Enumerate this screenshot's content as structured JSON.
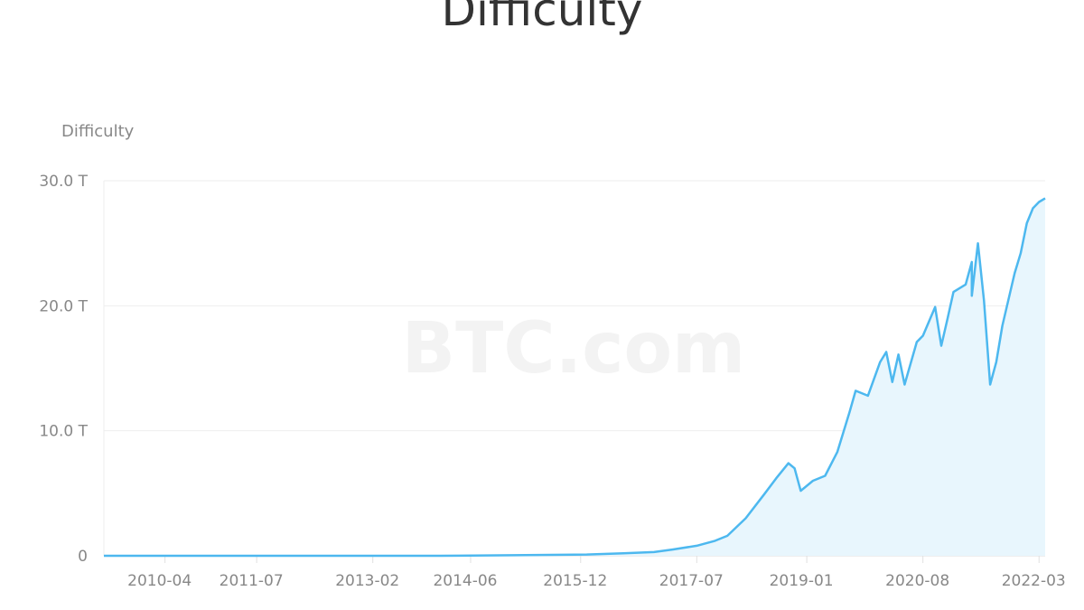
{
  "title": "Difficulty",
  "watermark": "BTC.com",
  "chart_data": {
    "type": "area",
    "title": "Difficulty",
    "ylabel": "Difficulty",
    "xlabel": "",
    "y_unit": "T",
    "ylim": [
      0,
      30
    ],
    "yticks": [
      {
        "v": 0,
        "label": "0"
      },
      {
        "v": 10,
        "label": "10.0 T"
      },
      {
        "v": 20,
        "label": "20.0 T"
      },
      {
        "v": 30,
        "label": "30.0 T"
      }
    ],
    "xrange": [
      "2009-06",
      "2022-04"
    ],
    "xticks": [
      "2010-04",
      "2011-07",
      "2013-02",
      "2014-06",
      "2015-12",
      "2017-07",
      "2019-01",
      "2020-08",
      "2022-03"
    ],
    "grid": true,
    "legend": "none",
    "colors": {
      "line": "#4db8ef",
      "fill": "#e8f6fd",
      "grid": "#eeeeee"
    },
    "series": [
      {
        "points": [
          [
            "2009-06",
            0
          ],
          [
            "2012-01",
            0.002
          ],
          [
            "2014-01",
            0.001
          ],
          [
            "2015-01",
            0.04
          ],
          [
            "2016-01",
            0.1
          ],
          [
            "2016-07",
            0.2
          ],
          [
            "2016-12",
            0.3
          ],
          [
            "2017-03",
            0.5
          ],
          [
            "2017-07",
            0.8
          ],
          [
            "2017-10",
            1.2
          ],
          [
            "2017-12",
            1.6
          ],
          [
            "2018-03",
            3.0
          ],
          [
            "2018-06",
            4.9
          ],
          [
            "2018-08",
            6.2
          ],
          [
            "2018-10",
            7.4
          ],
          [
            "2018-11",
            7.0
          ],
          [
            "2018-12",
            5.2
          ],
          [
            "2019-02",
            6.0
          ],
          [
            "2019-04",
            6.4
          ],
          [
            "2019-06",
            8.3
          ],
          [
            "2019-08",
            11.5
          ],
          [
            "2019-09",
            13.2
          ],
          [
            "2019-11",
            12.8
          ],
          [
            "2020-01",
            15.5
          ],
          [
            "2020-02",
            16.3
          ],
          [
            "2020-03",
            13.9
          ],
          [
            "2020-04",
            16.1
          ],
          [
            "2020-05",
            13.7
          ],
          [
            "2020-07",
            17.1
          ],
          [
            "2020-08",
            17.6
          ],
          [
            "2020-10",
            19.9
          ],
          [
            "2020-11",
            16.8
          ],
          [
            "2020-12",
            18.9
          ],
          [
            "2021-01",
            21.1
          ],
          [
            "2021-03",
            21.7
          ],
          [
            "2021-04",
            23.5
          ],
          [
            "2021-04",
            20.8
          ],
          [
            "2021-05",
            25.0
          ],
          [
            "2021-06",
            20.4
          ],
          [
            "2021-07",
            13.7
          ],
          [
            "2021-08",
            15.5
          ],
          [
            "2021-09",
            18.4
          ],
          [
            "2021-11",
            22.6
          ],
          [
            "2021-12",
            24.2
          ],
          [
            "2022-01",
            26.6
          ],
          [
            "2022-02",
            27.8
          ],
          [
            "2022-03",
            28.3
          ],
          [
            "2022-04",
            28.6
          ]
        ]
      }
    ]
  }
}
